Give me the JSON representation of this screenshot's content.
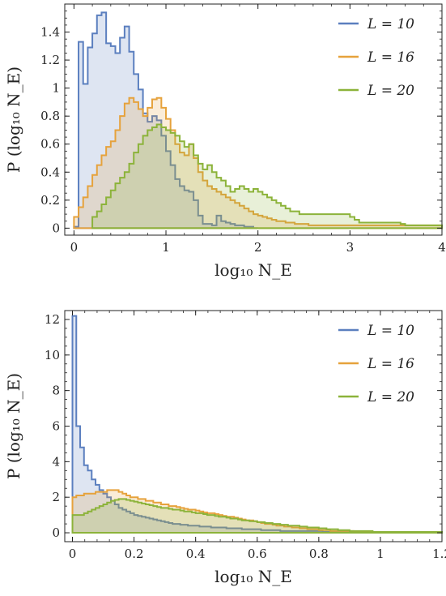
{
  "chart_data": [
    {
      "type": "area",
      "style": "step-histogram",
      "title": "",
      "xlabel": "log₁₀ N_E",
      "ylabel": "P (log₁₀ N_E)",
      "xlim": [
        -0.1,
        4.0
      ],
      "ylim": [
        -0.05,
        1.6
      ],
      "xticks": [
        0,
        1,
        2,
        3,
        4
      ],
      "xtick_labels": [
        "0",
        "1",
        "2",
        "3",
        "4"
      ],
      "yticks": [
        0,
        0.2,
        0.4,
        0.6,
        0.8,
        1,
        1.2,
        1.4
      ],
      "ytick_labels": [
        "0",
        "0.2",
        "0.4",
        "0.6",
        "0.8",
        "1",
        "1.2",
        "1.4"
      ],
      "legend_position": "top-right",
      "bin_width": 0.05,
      "series": [
        {
          "name": "L = 10",
          "color": "#5b7fbf",
          "bin_start": 0,
          "values": [
            0.01,
            1.33,
            1.03,
            1.29,
            1.39,
            1.52,
            1.54,
            1.32,
            1.3,
            1.25,
            1.36,
            1.44,
            1.26,
            1.1,
            0.99,
            0.82,
            0.76,
            0.8,
            0.77,
            0.66,
            0.55,
            0.45,
            0.35,
            0.3,
            0.27,
            0.26,
            0.2,
            0.09,
            0.03,
            0.03,
            0.02,
            0.09,
            0.05,
            0.04,
            0.03,
            0.02,
            0.02,
            0.01,
            0.01,
            0.0
          ]
        },
        {
          "name": "L = 16",
          "color": "#e6a23c",
          "bin_start": 0,
          "values": [
            0.08,
            0.15,
            0.22,
            0.3,
            0.38,
            0.45,
            0.52,
            0.58,
            0.62,
            0.7,
            0.8,
            0.89,
            0.93,
            0.9,
            0.85,
            0.8,
            0.86,
            0.92,
            0.93,
            0.86,
            0.78,
            0.7,
            0.6,
            0.54,
            0.52,
            0.6,
            0.5,
            0.4,
            0.34,
            0.3,
            0.28,
            0.26,
            0.24,
            0.22,
            0.2,
            0.18,
            0.16,
            0.14,
            0.12,
            0.1,
            0.09,
            0.08,
            0.07,
            0.06,
            0.05,
            0.05,
            0.04,
            0.04,
            0.03,
            0.03,
            0.03,
            0.02,
            0.02,
            0.02,
            0.02,
            0.02,
            0.02,
            0.02,
            0.02,
            0.02,
            0.02,
            0.02,
            0.02,
            0.02,
            0.02,
            0.02,
            0.02,
            0.02,
            0.02,
            0.02,
            0.02,
            0.02,
            0.02,
            0.02,
            0.02,
            0.02,
            0.02,
            0.02,
            0.02,
            0.02
          ]
        },
        {
          "name": "L = 20",
          "color": "#8cb33a",
          "bin_start": 0.2,
          "values": [
            0.08,
            0.12,
            0.17,
            0.22,
            0.27,
            0.32,
            0.36,
            0.4,
            0.46,
            0.54,
            0.6,
            0.66,
            0.7,
            0.72,
            0.74,
            0.72,
            0.7,
            0.68,
            0.66,
            0.62,
            0.58,
            0.6,
            0.52,
            0.46,
            0.42,
            0.45,
            0.4,
            0.36,
            0.34,
            0.3,
            0.26,
            0.28,
            0.3,
            0.28,
            0.26,
            0.28,
            0.26,
            0.24,
            0.22,
            0.2,
            0.18,
            0.16,
            0.14,
            0.12,
            0.12,
            0.1,
            0.1,
            0.1,
            0.1,
            0.1,
            0.1,
            0.1,
            0.1,
            0.1,
            0.1,
            0.1,
            0.08,
            0.06,
            0.04,
            0.04,
            0.04,
            0.04,
            0.04,
            0.04,
            0.04,
            0.04,
            0.04,
            0.03,
            0.02,
            0.02,
            0.02,
            0.02,
            0.02,
            0.02,
            0.02,
            0.02
          ]
        }
      ]
    },
    {
      "type": "area",
      "style": "step-histogram",
      "title": "",
      "xlabel": "log₁₀ N_E",
      "ylabel": "P (log₁₀ N_E)",
      "xlim": [
        -0.025,
        1.2
      ],
      "ylim": [
        -0.5,
        12.5
      ],
      "xticks": [
        0,
        0.2,
        0.4,
        0.6,
        0.8,
        1,
        1.2
      ],
      "xtick_labels": [
        "0",
        "0.2",
        "0.4",
        "0.6",
        "0.8",
        "1",
        "1.2"
      ],
      "yticks": [
        0,
        2,
        4,
        6,
        8,
        10,
        12
      ],
      "ytick_labels": [
        "0",
        "2",
        "4",
        "6",
        "8",
        "10",
        "12"
      ],
      "legend_position": "top-right",
      "bin_width": 0.0125,
      "series": [
        {
          "name": "L = 10",
          "color": "#5b7fbf",
          "bin_start": 0,
          "values": [
            12.2,
            6.0,
            4.8,
            3.8,
            3.5,
            3.0,
            2.7,
            2.4,
            2.2,
            2.0,
            1.8,
            1.6,
            1.4,
            1.3,
            1.2,
            1.1,
            1.0,
            0.95,
            0.9,
            0.85,
            0.8,
            0.75,
            0.7,
            0.65,
            0.6,
            0.55,
            0.5,
            0.5,
            0.45,
            0.45,
            0.4,
            0.4,
            0.4,
            0.35,
            0.35,
            0.35,
            0.3,
            0.3,
            0.3,
            0.3,
            0.25,
            0.25,
            0.25,
            0.25,
            0.2,
            0.2,
            0.2,
            0.2,
            0.2,
            0.15,
            0.15,
            0.15,
            0.15,
            0.15,
            0.1,
            0.1,
            0.1,
            0.1,
            0.1,
            0.1,
            0.1,
            0.1,
            0.1,
            0.1,
            0.1,
            0.05,
            0.05,
            0.05,
            0.05,
            0.05,
            0.05,
            0.05,
            0.05,
            0.05,
            0.05,
            0.05,
            0.05,
            0.05,
            0.05,
            0.05,
            0.05,
            0.05,
            0.05,
            0.05,
            0.05,
            0.05,
            0.05,
            0.05,
            0.05,
            0.05,
            0.05,
            0.05,
            0.05,
            0.05,
            0.05,
            0.05
          ]
        },
        {
          "name": "L = 16",
          "color": "#e6a23c",
          "bin_start": 0,
          "values": [
            2.0,
            2.1,
            2.1,
            2.2,
            2.2,
            2.2,
            2.3,
            2.3,
            2.3,
            2.4,
            2.4,
            2.4,
            2.3,
            2.2,
            2.1,
            2.0,
            2.0,
            1.9,
            1.9,
            1.8,
            1.8,
            1.7,
            1.7,
            1.6,
            1.6,
            1.5,
            1.5,
            1.45,
            1.4,
            1.35,
            1.3,
            1.3,
            1.25,
            1.2,
            1.15,
            1.1,
            1.1,
            1.05,
            1.0,
            0.95,
            0.9,
            0.9,
            0.85,
            0.8,
            0.75,
            0.7,
            0.7,
            0.65,
            0.6,
            0.55,
            0.5,
            0.5,
            0.45,
            0.4,
            0.4,
            0.35,
            0.35,
            0.3,
            0.3,
            0.25,
            0.25,
            0.2,
            0.2,
            0.2,
            0.15,
            0.15,
            0.15,
            0.1,
            0.1,
            0.1,
            0.1,
            0.1,
            0.1,
            0.05,
            0.05,
            0.05,
            0.05,
            0.05,
            0.05,
            0.05,
            0.05,
            0.05,
            0.05,
            0.05,
            0.05,
            0.05,
            0.05,
            0.05,
            0.05,
            0.05,
            0.05,
            0.05,
            0.05,
            0.05,
            0.05,
            0.05
          ]
        },
        {
          "name": "L = 20",
          "color": "#8cb33a",
          "bin_start": 0,
          "values": [
            1.0,
            1.0,
            1.0,
            1.1,
            1.2,
            1.3,
            1.4,
            1.5,
            1.6,
            1.7,
            1.8,
            1.85,
            1.9,
            1.9,
            1.85,
            1.8,
            1.75,
            1.7,
            1.65,
            1.6,
            1.55,
            1.5,
            1.45,
            1.4,
            1.4,
            1.35,
            1.3,
            1.3,
            1.25,
            1.2,
            1.2,
            1.15,
            1.1,
            1.1,
            1.05,
            1.0,
            1.0,
            0.95,
            0.9,
            0.9,
            0.85,
            0.8,
            0.8,
            0.75,
            0.7,
            0.7,
            0.65,
            0.65,
            0.6,
            0.6,
            0.55,
            0.55,
            0.5,
            0.5,
            0.45,
            0.45,
            0.4,
            0.4,
            0.4,
            0.35,
            0.35,
            0.3,
            0.3,
            0.3,
            0.25,
            0.25,
            0.2,
            0.2,
            0.2,
            0.15,
            0.15,
            0.15,
            0.1,
            0.1,
            0.1,
            0.1,
            0.1,
            0.1,
            0.05,
            0.05,
            0.05,
            0.05,
            0.05,
            0.05,
            0.05,
            0.05,
            0.05,
            0.05,
            0.05,
            0.05,
            0.05,
            0.05,
            0.05,
            0.05,
            0.05,
            0.05
          ]
        }
      ]
    }
  ]
}
